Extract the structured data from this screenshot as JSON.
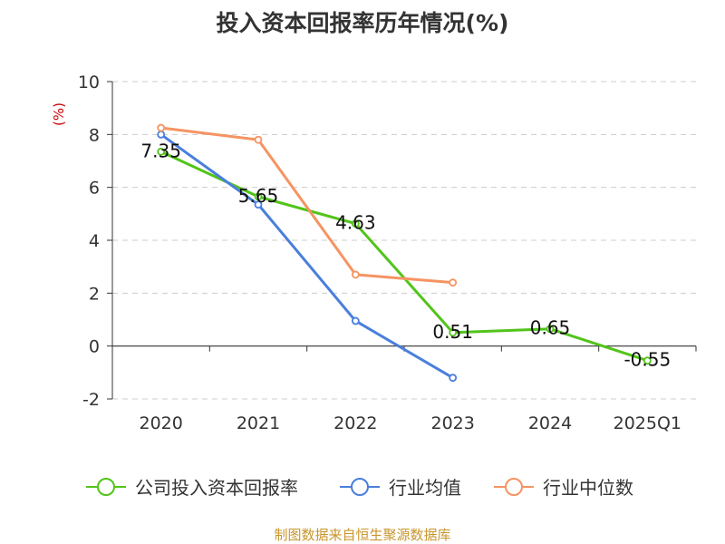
{
  "chart_data": {
    "type": "line",
    "title": "投入资本回报率历年情况(%)",
    "ylabel": "(%)",
    "ylim": [
      -2,
      10
    ],
    "yticks": [
      -2,
      0,
      2,
      4,
      6,
      8,
      10
    ],
    "categories": [
      "2020",
      "2021",
      "2022",
      "2023",
      "2024",
      "2025Q1"
    ],
    "grid": true,
    "legend_position": "bottom",
    "series": [
      {
        "name": "公司投入资本回报率",
        "color": "#52c41a",
        "values": [
          7.35,
          5.65,
          4.63,
          0.51,
          0.65,
          -0.55
        ],
        "labels": [
          "7.35",
          "5.65",
          "4.63",
          "0.51",
          "0.65",
          "-0.55"
        ]
      },
      {
        "name": "行业均值",
        "color": "#4a7fdc",
        "values": [
          8.0,
          5.35,
          0.95,
          -1.2,
          null,
          null
        ]
      },
      {
        "name": "行业中位数",
        "color": "#f59462",
        "values": [
          8.25,
          7.8,
          2.7,
          2.4,
          null,
          null
        ]
      }
    ]
  },
  "source_note": "制图数据来自恒生聚源数据库",
  "colors": {
    "title": "#333333",
    "axis": "#333333",
    "grid": "#cccccc",
    "ylabel": "#cc0000",
    "source": "#c8962d"
  }
}
